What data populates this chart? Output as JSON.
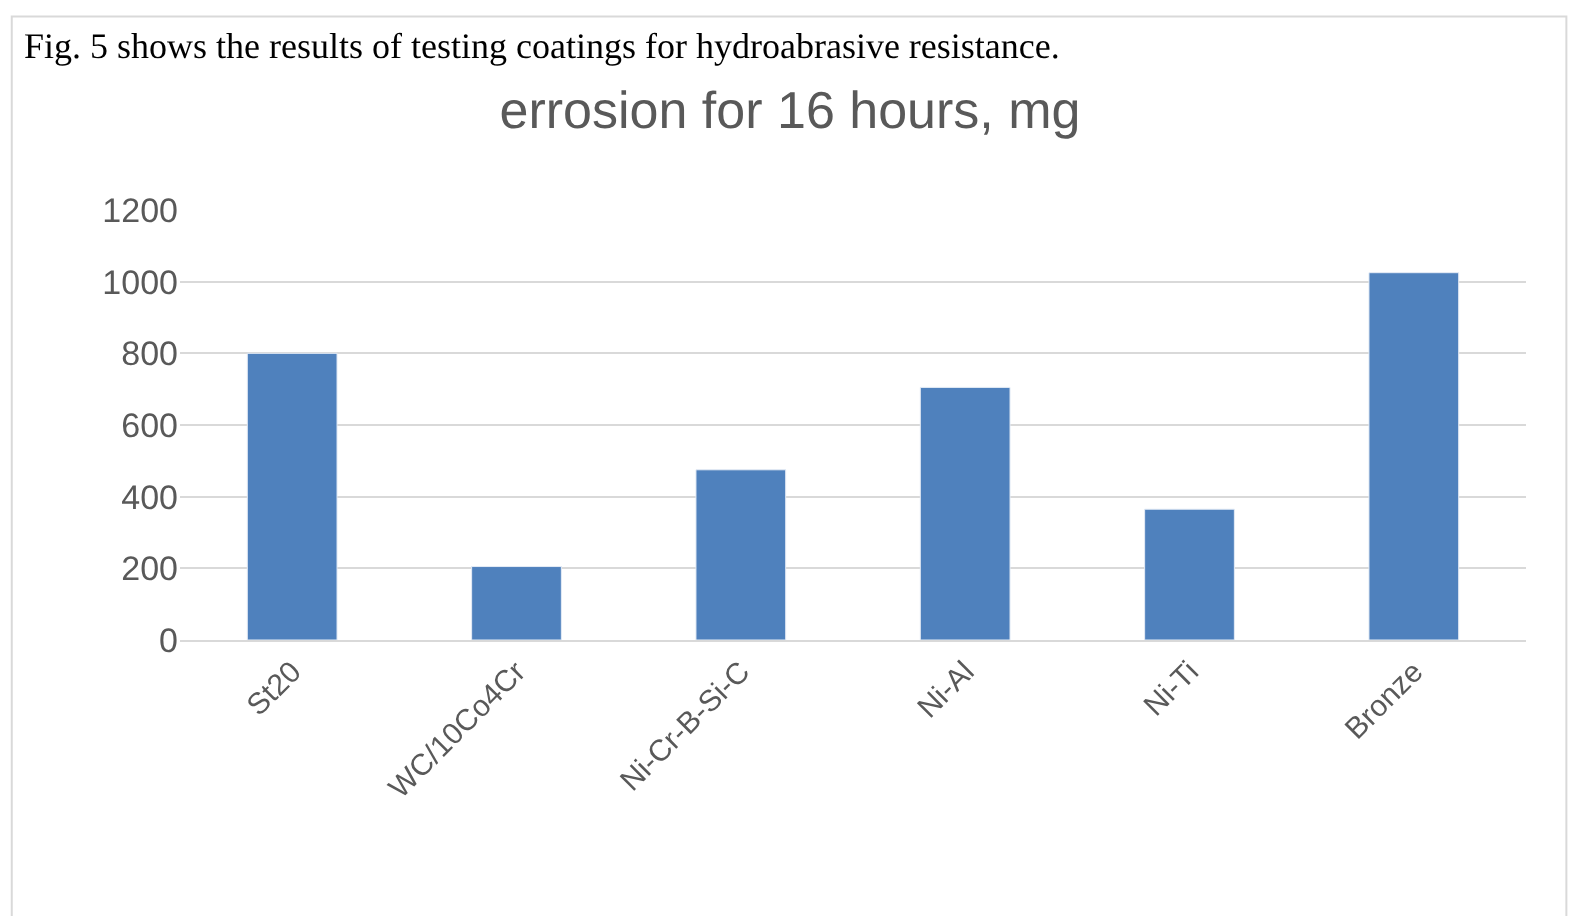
{
  "chart_data": {
    "type": "bar",
    "title": "errosion for 16 hours, mg",
    "annotations": [
      "Fig. 5 shows the results of testing coatings for hydroabrasive resistance."
    ],
    "categories": [
      "St20",
      "WC/10Co4Cr",
      "Ni-Cr-B-Si-C",
      "Ni-Al",
      "Ni-Ti",
      "Bronze"
    ],
    "values": [
      800,
      205,
      475,
      705,
      365,
      1025
    ],
    "color": "#4f81bd",
    "ylim": [
      0,
      1200
    ],
    "yticks": [
      0,
      200,
      400,
      600,
      800,
      1000,
      1200
    ],
    "grid": "y"
  }
}
